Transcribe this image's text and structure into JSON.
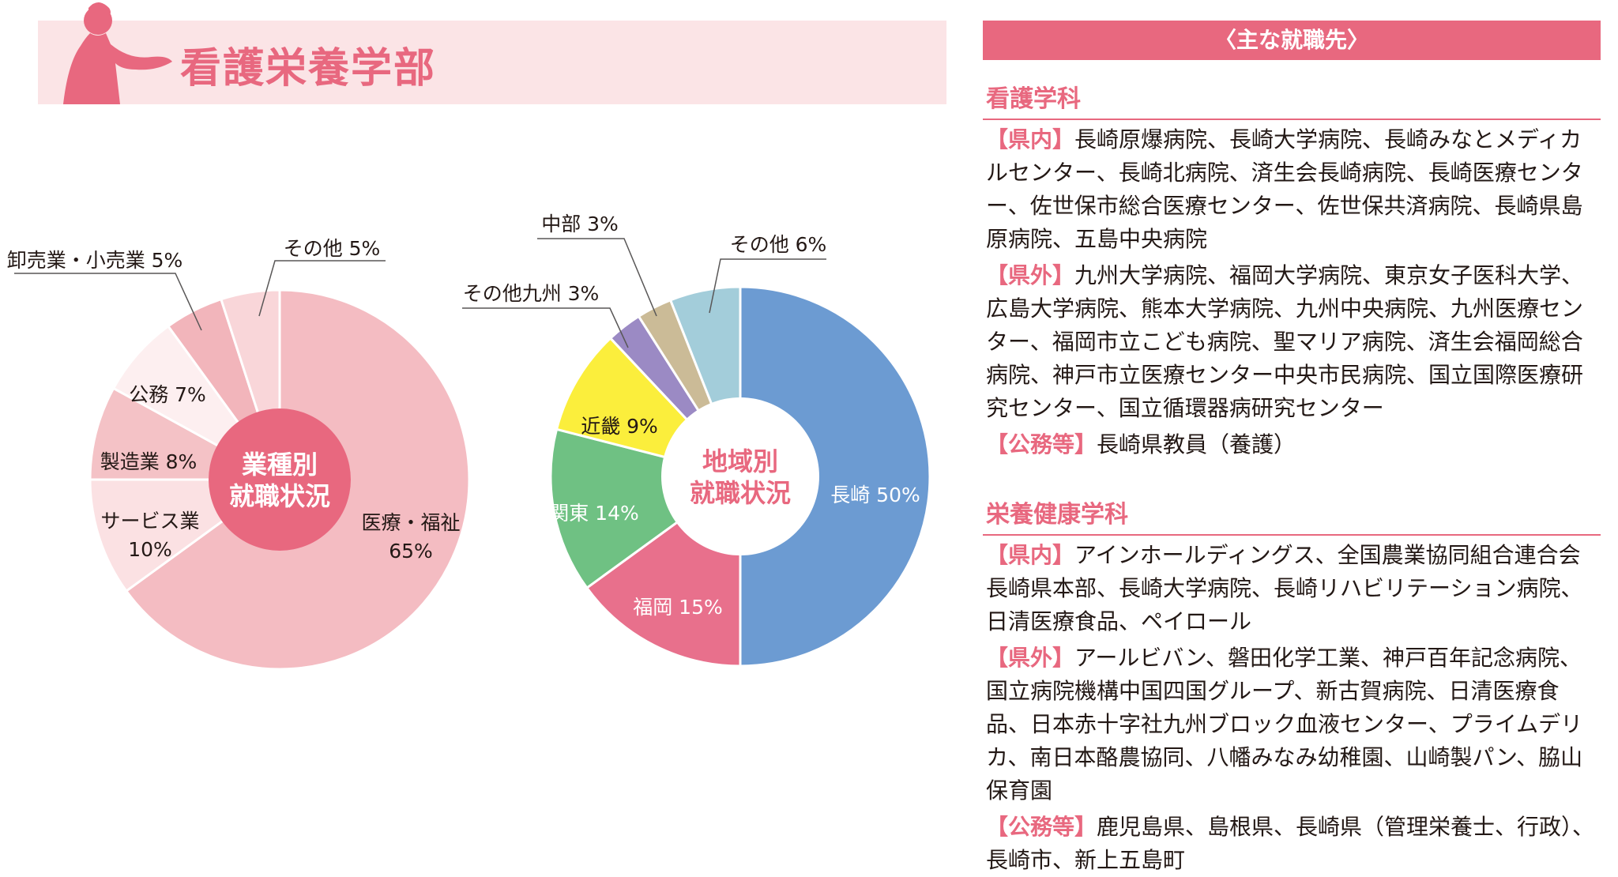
{
  "header": {
    "title": "看護栄養学部"
  },
  "chart_data": [
    {
      "type": "pie",
      "center_label": [
        "業種別",
        "就職状況"
      ],
      "slices": [
        {
          "label": "医療・福祉",
          "value_label": "65%",
          "value": 65,
          "color": "#f4bcc2"
        },
        {
          "label": "サービス業",
          "value_label": "10%",
          "value": 10,
          "color": "#fbe1e3"
        },
        {
          "label": "製造業",
          "value_label": "8%",
          "value": 8,
          "color": "#f4c2c6"
        },
        {
          "label": "公務",
          "value_label": "7%",
          "value": 7,
          "color": "#fdeff0"
        },
        {
          "label": "卸売業・小売業",
          "value_label": "5%",
          "value": 5,
          "color": "#f2b5bb"
        },
        {
          "label": "その他",
          "value_label": "5%",
          "value": 5,
          "color": "#f9d6d9"
        }
      ]
    },
    {
      "type": "pie",
      "center_label": [
        "地域別",
        "就職状況"
      ],
      "slices": [
        {
          "label": "長崎",
          "value_label": "50%",
          "value": 50,
          "color": "#6c9bd2"
        },
        {
          "label": "福岡",
          "value_label": "15%",
          "value": 15,
          "color": "#e8708c"
        },
        {
          "label": "関東",
          "value_label": "14%",
          "value": 14,
          "color": "#6fc183"
        },
        {
          "label": "近畿",
          "value_label": "9%",
          "value": 9,
          "color": "#fbee3c"
        },
        {
          "label": "その他九州",
          "value_label": "3%",
          "value": 3,
          "color": "#9b8ac4"
        },
        {
          "label": "中部",
          "value_label": "3%",
          "value": 3,
          "color": "#cbbb97"
        },
        {
          "label": "その他",
          "value_label": "6%",
          "value": 6,
          "color": "#a3cdda"
        }
      ]
    }
  ],
  "employers": {
    "heading": "〈主な就職先〉",
    "sections": [
      {
        "title": "看護学科",
        "paras": [
          {
            "tag": "【県内】",
            "text": "長崎原爆病院、長崎大学病院、長崎みなとメディカルセンター、長崎北病院、済生会長崎病院、長崎医療センター、佐世保市総合医療センター、佐世保共済病院、長崎県島原病院、五島中央病院"
          },
          {
            "tag": "【県外】",
            "text": "九州大学病院、福岡大学病院、東京女子医科大学、広島大学病院、熊本大学病院、九州中央病院、九州医療センター、福岡市立こども病院、聖マリア病院、済生会福岡総合病院、神戸市立医療センター中央市民病院、国立国際医療研究センター、国立循環器病研究センター"
          },
          {
            "tag": "【公務等】",
            "text": "長崎県教員（養護）"
          }
        ]
      },
      {
        "title": "栄養健康学科",
        "paras": [
          {
            "tag": "【県内】",
            "text": "アインホールディングス、全国農業協同組合連合会長崎県本部、長崎大学病院、長崎リハビリテーション病院、日清医療食品、ペイロール"
          },
          {
            "tag": "【県外】",
            "text": "アールビバン、磐田化学工業、神戸百年記念病院、国立病院機構中国四国グループ、新古賀病院、日清医療食品、日本赤十字社九州ブロック血液センター、プライムデリカ、南日本酪農協同、八幡みなみ幼稚園、山崎製パン、脇山保育園"
          },
          {
            "tag": "【公務等】",
            "text": "鹿児島県、島根県、長崎県（管理栄養士、行政）、長崎市、新上五島町"
          }
        ]
      }
    ]
  }
}
